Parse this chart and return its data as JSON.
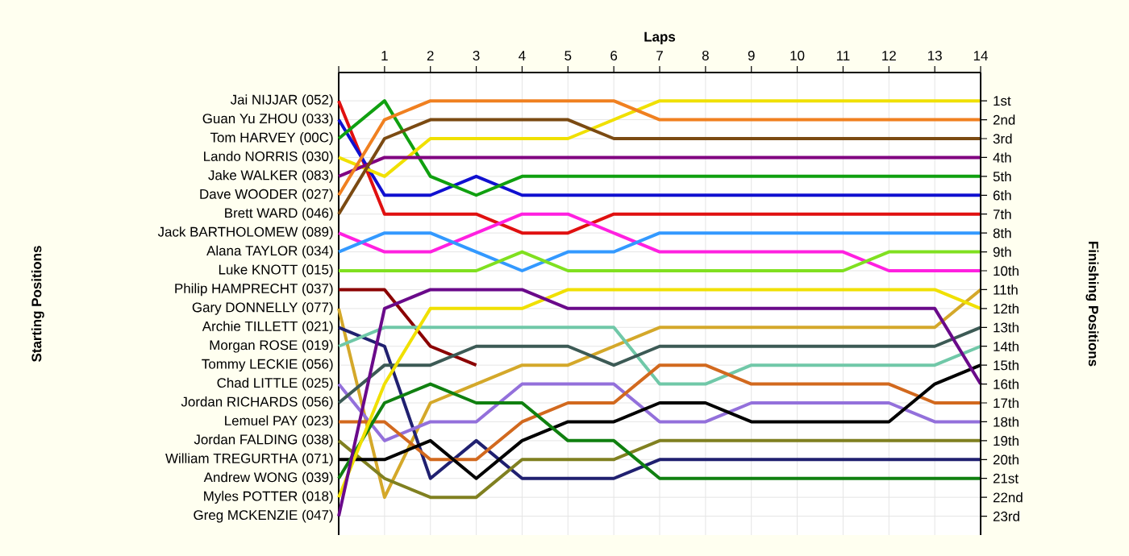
{
  "chart_data": {
    "type": "line",
    "xlabel": "Laps",
    "ylabel": "Finishing Positions",
    "annotations": [
      "Starting Positions",
      "Tommy LECKIE (056)"
    ],
    "legend": "left",
    "grid": true,
    "marker": "none",
    "line_style": "solid",
    "x": [
      0,
      1,
      2,
      3,
      4,
      5,
      6,
      7,
      8,
      9,
      10,
      11,
      12,
      13,
      14
    ],
    "xlim": [
      0,
      14
    ],
    "xticks": [
      {
        "value": 0,
        "label": null
      },
      1,
      2,
      3,
      4,
      5,
      6,
      7,
      8,
      9,
      10,
      11,
      12,
      13,
      14
    ],
    "ylim": [
      24,
      -0.5
    ],
    "yticks": [
      {
        "value": 1,
        "label": "1st"
      },
      {
        "value": 2,
        "label": "2nd"
      },
      {
        "value": 3,
        "label": "3rd"
      },
      {
        "value": 4,
        "label": "4th"
      },
      {
        "value": 5,
        "label": "5th"
      },
      {
        "value": 6,
        "label": "6th"
      },
      {
        "value": 7,
        "label": "7th"
      },
      {
        "value": 8,
        "label": "8th"
      },
      {
        "value": 9,
        "label": "9th"
      },
      {
        "value": 10,
        "label": "10th"
      },
      {
        "value": 11,
        "label": "11th"
      },
      {
        "value": 12,
        "label": "12th"
      },
      {
        "value": 13,
        "label": "13th"
      },
      {
        "value": 14,
        "label": "14th"
      },
      {
        "value": 15,
        "label": "15th"
      },
      {
        "value": 16,
        "label": "16th"
      },
      {
        "value": 17,
        "label": "17th"
      },
      {
        "value": 18,
        "label": "18th"
      },
      {
        "value": 19,
        "label": "19th"
      },
      {
        "value": 20,
        "label": "20th"
      },
      {
        "value": 21,
        "label": "21st"
      },
      {
        "value": 22,
        "label": "22nd"
      },
      {
        "value": 23,
        "label": "23rd"
      }
    ],
    "series": [
      {
        "name": "Jai NIJJAR (052)",
        "color": "#e01010",
        "values": [
          1,
          7,
          7,
          7,
          8,
          8,
          7,
          7,
          7,
          7,
          7,
          7,
          7,
          7,
          7
        ]
      },
      {
        "name": "Guan Yu ZHOU (033)",
        "color": "#1010d0",
        "values": [
          2,
          6,
          6,
          5,
          6,
          6,
          6,
          6,
          6,
          6,
          6,
          6,
          6,
          6,
          6
        ]
      },
      {
        "name": "Tom HARVEY (00C)",
        "color": "#10a010",
        "values": [
          3,
          1,
          5,
          6,
          5,
          5,
          5,
          5,
          5,
          5,
          5,
          5,
          5,
          5,
          5
        ]
      },
      {
        "name": "Lando NORRIS (030)",
        "color": "#f0e000",
        "values": [
          4,
          5,
          3,
          3,
          3,
          3,
          2,
          1,
          1,
          1,
          1,
          1,
          1,
          1,
          1
        ]
      },
      {
        "name": "Jake WALKER (083)",
        "color": "#800080",
        "values": [
          5,
          4,
          4,
          4,
          4,
          4,
          4,
          4,
          4,
          4,
          4,
          4,
          4,
          4,
          4
        ]
      },
      {
        "name": "Dave WOODER (027)",
        "color": "#f08020",
        "values": [
          6,
          2,
          1,
          1,
          1,
          1,
          1,
          2,
          2,
          2,
          2,
          2,
          2,
          2,
          2
        ]
      },
      {
        "name": "Brett WARD (046)",
        "color": "#7b4a12",
        "values": [
          7,
          3,
          2,
          2,
          2,
          2,
          3,
          3,
          3,
          3,
          3,
          3,
          3,
          3,
          3
        ]
      },
      {
        "name": "Jack BARTHOLOMEW (089)",
        "color": "#ff20e0",
        "values": [
          8,
          9,
          9,
          8,
          7,
          7,
          8,
          9,
          9,
          9,
          9,
          9,
          10,
          10,
          10
        ]
      },
      {
        "name": "Alana TAYLOR (034)",
        "color": "#3399ff",
        "values": [
          9,
          8,
          8,
          9,
          10,
          9,
          9,
          8,
          8,
          8,
          8,
          8,
          8,
          8,
          8
        ]
      },
      {
        "name": "Luke KNOTT (015)",
        "color": "#80e020",
        "values": [
          10,
          10,
          10,
          10,
          9,
          10,
          10,
          10,
          10,
          10,
          10,
          10,
          9,
          9,
          9
        ]
      },
      {
        "name": "Philip HAMPRECHT (037)",
        "color": "#8b0000",
        "values": [
          11,
          11,
          14,
          15,
          null,
          null,
          null,
          null,
          null,
          null,
          null,
          null,
          null,
          null,
          null
        ]
      },
      {
        "name": "Gary DONNELLY (077)",
        "color": "#d4a82a",
        "values": [
          12,
          22,
          17,
          16,
          15,
          15,
          14,
          13,
          13,
          13,
          13,
          13,
          13,
          13,
          11
        ]
      },
      {
        "name": "Archie TILLETT (021)",
        "color": "#202070",
        "values": [
          13,
          14,
          21,
          19,
          21,
          21,
          21,
          20,
          20,
          20,
          20,
          20,
          20,
          20,
          20
        ]
      },
      {
        "name": "Morgan ROSE (019)",
        "color": "#70c8a8",
        "values": [
          14,
          13,
          13,
          13,
          13,
          13,
          13,
          16,
          16,
          15,
          15,
          15,
          15,
          15,
          14
        ]
      },
      {
        "name": "Chad LITTLE (025)",
        "color": "#9370db",
        "values": [
          16,
          19,
          18,
          18,
          16,
          16,
          16,
          18,
          18,
          17,
          17,
          17,
          17,
          18,
          18
        ]
      },
      {
        "name": "Jordan RICHARDS (056)",
        "color": "#3c5a55",
        "values": [
          17,
          15,
          15,
          14,
          14,
          14,
          15,
          14,
          14,
          14,
          14,
          14,
          14,
          14,
          13
        ]
      },
      {
        "name": "Lemuel PAY (023)",
        "color": "#d2691e",
        "values": [
          18,
          18,
          20,
          20,
          18,
          17,
          17,
          15,
          15,
          16,
          16,
          16,
          16,
          17,
          17
        ]
      },
      {
        "name": "Jordan FALDING (038)",
        "color": "#808020",
        "values": [
          19,
          21,
          22,
          22,
          20,
          20,
          20,
          19,
          19,
          19,
          19,
          19,
          19,
          19,
          19
        ]
      },
      {
        "name": "William TREGURTHA (071)",
        "color": "#000000",
        "values": [
          20,
          20,
          19,
          21,
          19,
          18,
          18,
          17,
          17,
          18,
          18,
          18,
          18,
          16,
          15
        ]
      },
      {
        "name": "Andrew WONG (039)",
        "color": "#108010",
        "values": [
          21,
          17,
          16,
          17,
          17,
          19,
          19,
          21,
          21,
          21,
          21,
          21,
          21,
          21,
          21
        ]
      },
      {
        "name": "Myles POTTER (018)",
        "color": "#f0e000",
        "values": [
          22,
          16,
          12,
          12,
          12,
          11,
          11,
          11,
          11,
          11,
          11,
          11,
          11,
          11,
          12
        ]
      },
      {
        "name": "Greg MCKENZIE (047)",
        "color": "#6a0a8a",
        "values": [
          23,
          12,
          11,
          11,
          11,
          12,
          12,
          12,
          12,
          12,
          12,
          12,
          12,
          12,
          16
        ]
      }
    ]
  }
}
